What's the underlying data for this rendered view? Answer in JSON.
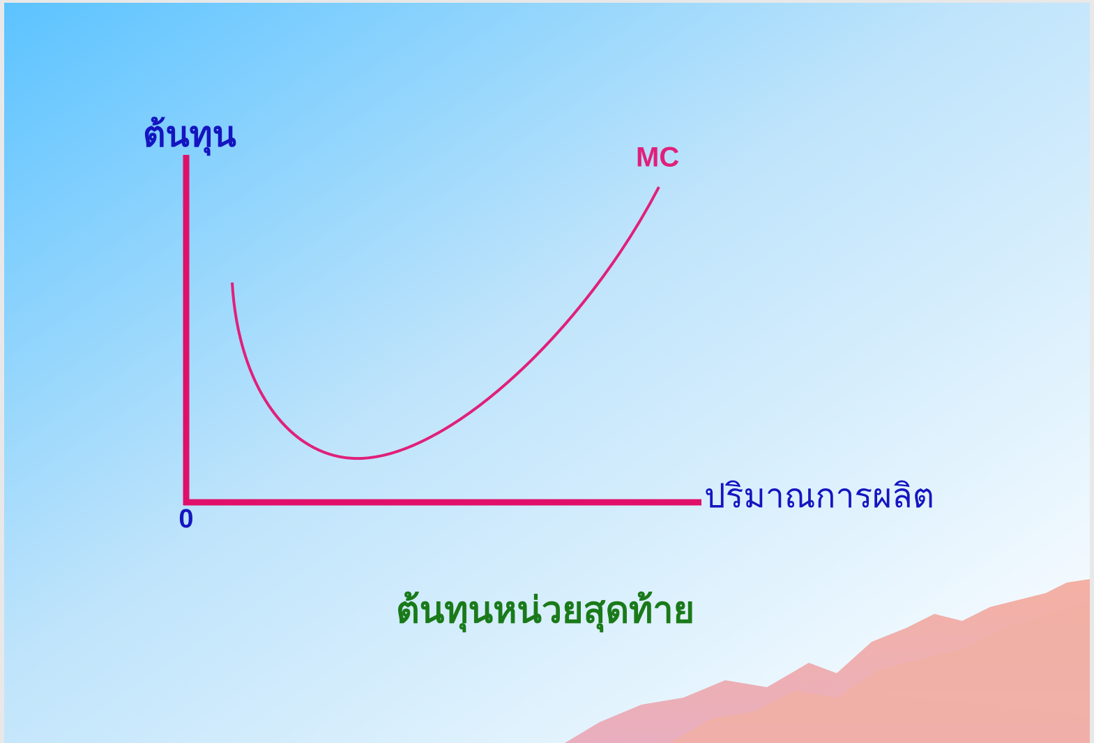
{
  "diagram": {
    "y_axis_label": "ต้นทุน",
    "x_axis_label": "ปริมาณการผลิต",
    "origin_label": "0",
    "curve_label": "MC",
    "caption": "ต้นทุนหน่วยสุดท้าย"
  }
}
